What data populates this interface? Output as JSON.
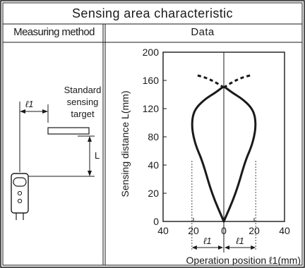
{
  "header": {
    "title": "Sensing area characteristic",
    "col_method": "Measuring method",
    "col_data": "Data"
  },
  "method": {
    "target_label": [
      "Standard",
      "sensing",
      "target"
    ],
    "distance_symbol": "L",
    "offset_symbol": "ℓ1"
  },
  "chart": {
    "ylabel": "Sensing distance L(mm)",
    "xlabel": "Operation position ℓ1(mm)",
    "y_ticks": [
      "0",
      "20",
      "40",
      "80",
      "120",
      "160",
      "200"
    ],
    "x_ticks": [
      "40",
      "20",
      "0",
      "20",
      "40"
    ],
    "dim_label_left": "ℓ1",
    "dim_label_right": "ℓ1"
  },
  "chart_data": {
    "type": "line",
    "title": "Sensing area characteristic",
    "xlabel": "Operation position ℓ1(mm)",
    "ylabel": "Sensing distance L(mm)",
    "x_tick_labels": [
      "40",
      "20",
      "0",
      "20",
      "40"
    ],
    "y_tick_labels": [
      "0",
      "20",
      "40",
      "80",
      "120",
      "160",
      "200"
    ],
    "xlim": [
      -40,
      40
    ],
    "series": [
      {
        "style": "solid",
        "x": [
          0,
          -8,
          -14,
          -18,
          -20,
          -21,
          -20.5,
          -18,
          -12,
          -6,
          -1
        ],
        "y": [
          0,
          20,
          45,
          65,
          80,
          95,
          110,
          122,
          134,
          142,
          150
        ]
      },
      {
        "style": "solid",
        "x": [
          0,
          8,
          14,
          18,
          20,
          21,
          20.5,
          18,
          12,
          6,
          1
        ],
        "y": [
          0,
          20,
          45,
          65,
          80,
          95,
          110,
          122,
          134,
          142,
          150
        ]
      },
      {
        "style": "dashed",
        "x": [
          0,
          -6,
          -12,
          -19
        ],
        "y": [
          150,
          158,
          164,
          168
        ]
      },
      {
        "style": "dashed",
        "x": [
          0,
          6,
          12,
          19
        ],
        "y": [
          150,
          158,
          164,
          168
        ]
      }
    ]
  }
}
